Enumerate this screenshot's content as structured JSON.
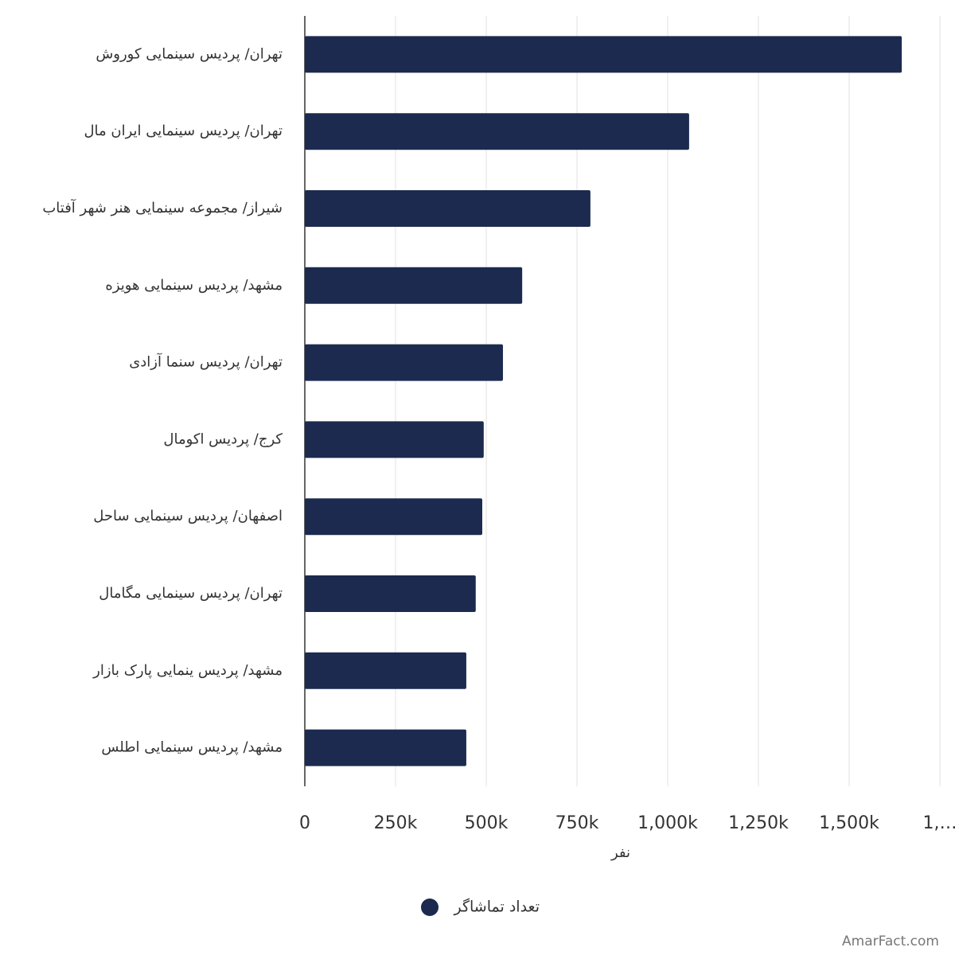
{
  "chart_data": {
    "type": "bar",
    "orientation": "horizontal",
    "categories": [
      "تهران/ پردیس سینمایی کوروش",
      "تهران/ پردیس سینمایی ایران مال",
      "شیراز/ مجموعه سینمایی هنر شهر آفتاب",
      "مشهد/ پردیس سینمایی هویزه",
      "تهران/ پردیس سنما آزادی",
      "کرج/ پردیس اکومال",
      "اصفهان/ پردیس سینمایی ساحل",
      "تهران/ پردیس سینمایی مگامال",
      "مشهد/ پردیس ینمایی پارک بازار",
      "مشهد/ پردیس سینمایی اطلس"
    ],
    "series": [
      {
        "name": "تعداد تماشاگر",
        "color": "#1b2a4e",
        "values": [
          1645000,
          1059000,
          787000,
          599000,
          546000,
          493000,
          489000,
          471000,
          445000,
          445000
        ]
      }
    ],
    "xlabel": "نفر",
    "xlim": [
      0,
      1750000
    ],
    "xticks": [
      0,
      {
        "value": 250000,
        "label": "250k"
      },
      {
        "value": 500000,
        "label": "500k"
      },
      {
        "value": 750000,
        "label": "750k"
      },
      {
        "value": 1000000,
        "label": "1,000k"
      },
      {
        "value": 1250000,
        "label": "1,250k"
      },
      {
        "value": 1500000,
        "label": "1,500k"
      },
      {
        "value": 1750000,
        "label": "1,…"
      }
    ],
    "grid": true,
    "legend": "bottom",
    "watermark": "AmarFact.com"
  }
}
